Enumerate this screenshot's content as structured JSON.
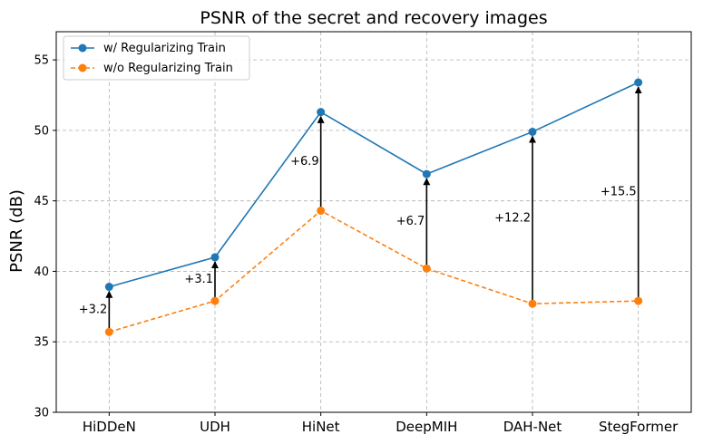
{
  "chart_data": {
    "type": "line",
    "title": "PSNR of the secret and recovery images",
    "xlabel": "",
    "ylabel": "PSNR (dB)",
    "ylim": [
      30,
      57
    ],
    "yticks": [
      30,
      35,
      40,
      45,
      50,
      55
    ],
    "grid": true,
    "legend_position": "top-left",
    "categories": [
      "HiDDeN",
      "UDH",
      "HiNet",
      "DeepMIH",
      "DAH-Net",
      "StegFormer"
    ],
    "series": [
      {
        "name": "w/ Regularizing Train",
        "color": "#1f77b4",
        "linestyle": "solid",
        "values": [
          38.9,
          41.0,
          51.3,
          46.9,
          49.9,
          53.4
        ]
      },
      {
        "name": "w/o Regularizing Train",
        "color": "#ff7f0e",
        "linestyle": "dashed",
        "values": [
          35.7,
          37.9,
          44.3,
          40.2,
          37.7,
          37.9
        ]
      }
    ],
    "annotations": [
      "+3.2",
      "+3.1",
      "+6.9",
      "+6.7",
      "+12.2",
      "+15.5"
    ]
  }
}
